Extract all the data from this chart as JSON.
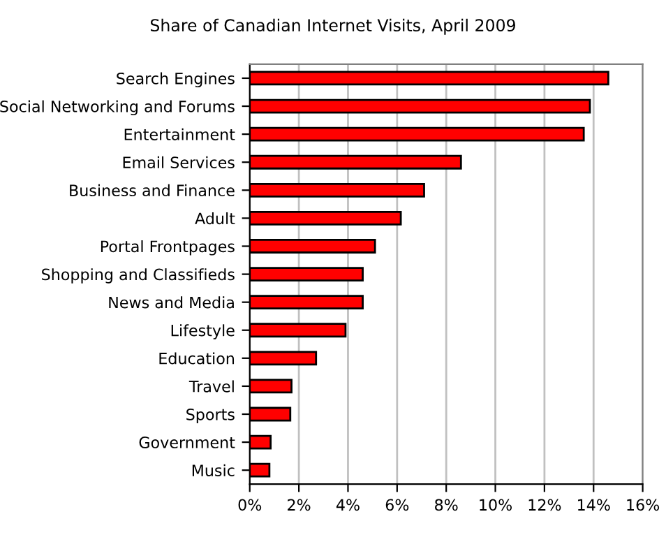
{
  "chart_data": {
    "type": "bar",
    "orientation": "horizontal",
    "title": "Share of Canadian Internet Visits, April 2009",
    "categories": [
      "Search Engines",
      "Social Networking and Forums",
      "Entertainment",
      "Email Services",
      "Business and Finance",
      "Adult",
      "Portal Frontpages",
      "Shopping and Classifieds",
      "News and Media",
      "Lifestyle",
      "Education",
      "Travel",
      "Sports",
      "Government",
      "Music"
    ],
    "values": [
      14.6,
      13.85,
      13.6,
      8.6,
      7.1,
      6.15,
      5.1,
      4.6,
      4.6,
      3.9,
      2.7,
      1.7,
      1.65,
      0.85,
      0.8
    ],
    "color": "#ff0000",
    "xlim": [
      0,
      16
    ],
    "xticks": [
      {
        "value": 0,
        "label": "0%"
      },
      {
        "value": 2,
        "label": "2%"
      },
      {
        "value": 4,
        "label": "4%"
      },
      {
        "value": 6,
        "label": "6%"
      },
      {
        "value": 8,
        "label": "8%"
      },
      {
        "value": 10,
        "label": "10%"
      },
      {
        "value": 12,
        "label": "12%"
      },
      {
        "value": 14,
        "label": "14%"
      },
      {
        "value": 16,
        "label": "16%"
      }
    ],
    "grid": "x",
    "legend": false
  }
}
